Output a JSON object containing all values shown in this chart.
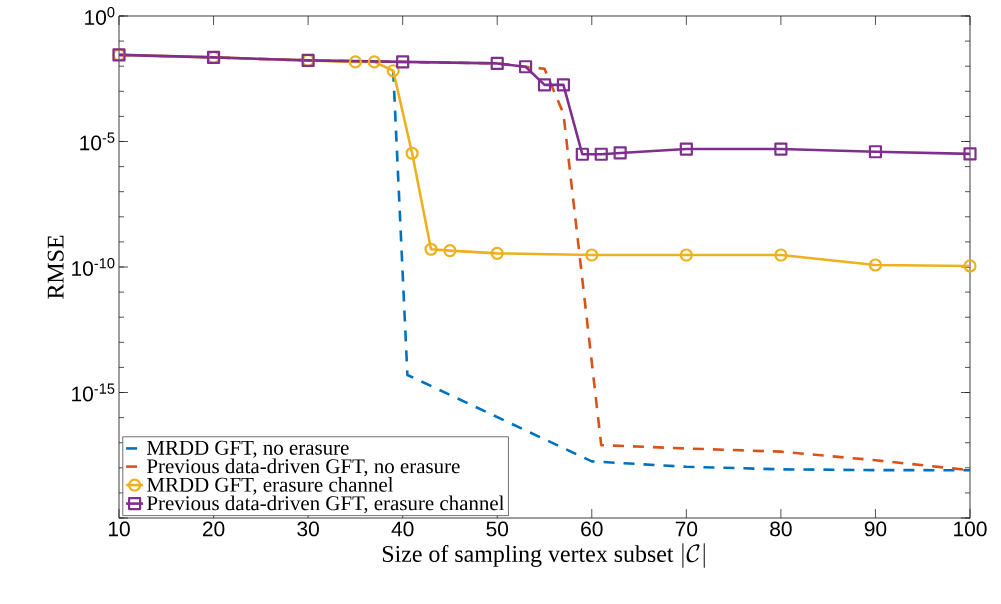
{
  "chart_data": {
    "type": "line",
    "log": "y",
    "legend": "bottom left",
    "xlabel": "\\mbox{Size of sampling vertex subset }|\\mathcal{C}|",
    "ylabel": "RMSE",
    "xlim": [
      10,
      100
    ],
    "xticks": [
      10,
      20,
      30,
      40,
      50,
      60,
      70,
      80,
      90,
      100
    ],
    "ylim": [
      1e-20,
      1
    ],
    "yticks": [
      {
        "value": 1,
        "label": "10$^{0}$"
      },
      {
        "value": 1e-05,
        "label": "10$^{-5}$"
      },
      {
        "value": 1e-10,
        "label": "10$^{-10}$"
      },
      {
        "value": 1e-15,
        "label": "10$^{-15}$"
      },
      {
        "value": 1e-20,
        "label": null
      }
    ],
    "series": [
      {
        "name": "MRDD GFT, no erasure",
        "color": "#0072bd",
        "line_style": "dashed",
        "marker": "none",
        "x": [
          39,
          40.5,
          60,
          70,
          80,
          90,
          100
        ],
        "values": [
          0.0066,
          5e-15,
          1.8e-18,
          1.1e-18,
          8.7e-19,
          8.1e-19,
          8e-19
        ]
      },
      {
        "name": "Previous data-driven GFT, no erasure",
        "color": "#d95319",
        "line_style": "dashed",
        "marker": "none",
        "x": [
          10,
          20,
          30,
          40,
          50,
          53,
          55,
          57,
          61,
          70,
          80,
          90,
          100
        ],
        "values": [
          0.0282,
          0.0224,
          0.017,
          0.0148,
          0.0129,
          0.0095,
          0.0079,
          0.00013,
          8e-18,
          5.9e-18,
          4.4e-18,
          2e-18,
          8e-19
        ]
      },
      {
        "name": "MRDD GFT, erasure channel",
        "color": "#edb120",
        "line_style": "solid",
        "marker": "circle",
        "x": [
          10,
          20,
          30,
          35,
          37,
          39,
          41,
          43,
          45,
          50,
          60,
          70,
          80,
          90,
          100
        ],
        "values": [
          0.0282,
          0.0224,
          0.017,
          0.0148,
          0.0148,
          0.0066,
          3.4e-06,
          5.1e-10,
          4.5e-10,
          3.5e-10,
          3e-10,
          3e-10,
          3e-10,
          1.2e-10,
          1.1e-10
        ]
      },
      {
        "name": "Previous data-driven GFT, erasure channel",
        "color": "#7e2f8e",
        "line_style": "solid",
        "marker": "square",
        "x": [
          10,
          20,
          30,
          40,
          50,
          53,
          55,
          57,
          59,
          61,
          63,
          70,
          80,
          90,
          100
        ],
        "values": [
          0.0282,
          0.0224,
          0.017,
          0.0148,
          0.0129,
          0.0095,
          0.0018,
          0.0018,
          3.1e-06,
          3.1e-06,
          3.5e-06,
          5e-06,
          5e-06,
          3.9e-06,
          3.2e-06
        ]
      }
    ]
  }
}
